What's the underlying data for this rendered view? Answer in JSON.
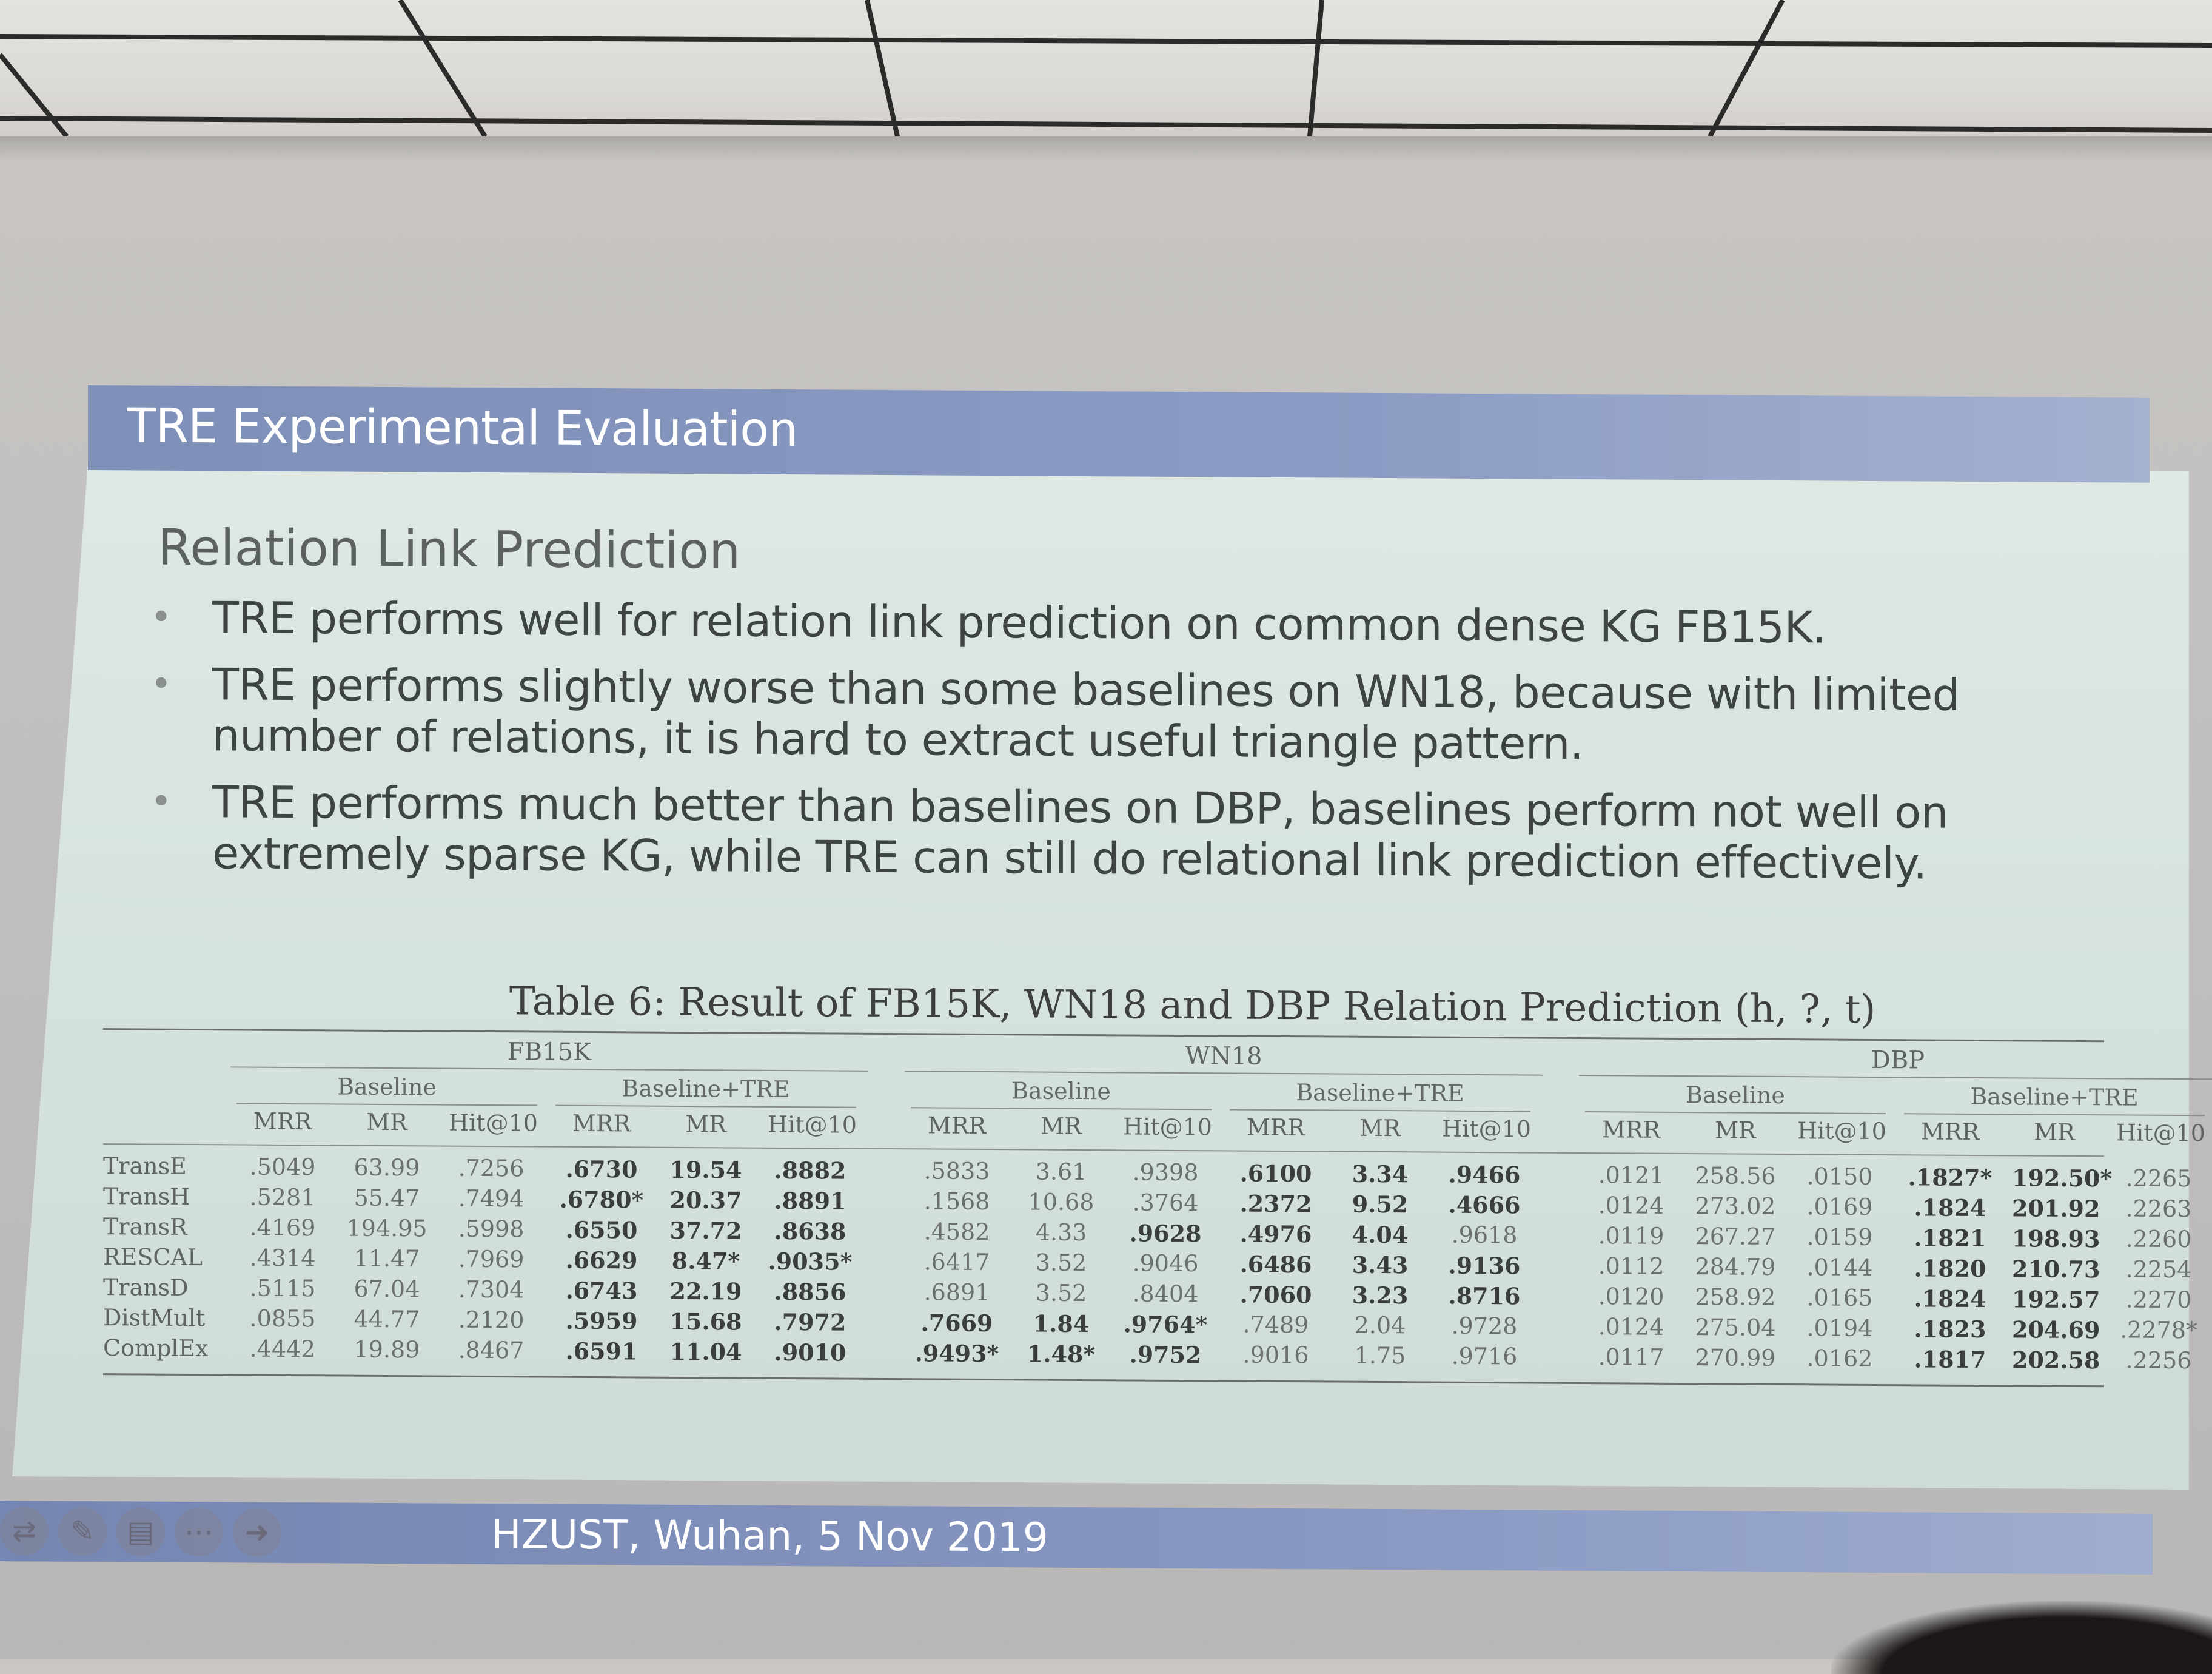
{
  "slide": {
    "title": "TRE Experimental Evaluation",
    "heading": "Relation Link Prediction",
    "bullets": [
      "TRE performs well for relation link prediction on common dense KG FB15K.",
      "TRE performs slightly worse than some baselines on WN18, because with limited number of relations, it is hard to extract useful triangle pattern.",
      "TRE performs much better than baselines on DBP, baselines perform not well on extremely sparse KG, while TRE can still do relational link prediction effectively."
    ],
    "footer": "HZUST, Wuhan, 5 Nov 2019"
  },
  "nav_icons": [
    "arrows-icon",
    "pen-icon",
    "menu-icon",
    "more-icon",
    "next-icon"
  ],
  "table": {
    "caption": "Table 6: Result of FB15K, WN18 and DBP Relation Prediction (h, ?, t)",
    "datasets": [
      "FB15K",
      "WN18",
      "DBP"
    ],
    "groups": [
      "Baseline",
      "Baseline+TRE"
    ],
    "metrics": [
      "MRR",
      "MR",
      "Hit@10"
    ],
    "rows": [
      {
        "model": "TransE",
        "cells": [
          ".5049",
          "63.99",
          ".7256",
          ".6730",
          "19.54",
          ".8882",
          ".5833",
          "3.61",
          ".9398",
          ".6100",
          "3.34",
          ".9466",
          ".0121",
          "258.56",
          ".0150",
          ".1827*",
          "192.50*",
          ".2265"
        ]
      },
      {
        "model": "TransH",
        "cells": [
          ".5281",
          "55.47",
          ".7494",
          ".6780*",
          "20.37",
          ".8891",
          ".1568",
          "10.68",
          ".3764",
          ".2372",
          "9.52",
          ".4666",
          ".0124",
          "273.02",
          ".0169",
          ".1824",
          "201.92",
          ".2263"
        ]
      },
      {
        "model": "TransR",
        "cells": [
          ".4169",
          "194.95",
          ".5998",
          ".6550",
          "37.72",
          ".8638",
          ".4582",
          "4.33",
          ".9628",
          ".4976",
          "4.04",
          ".9618",
          ".0119",
          "267.27",
          ".0159",
          ".1821",
          "198.93",
          ".2260"
        ]
      },
      {
        "model": "RESCAL",
        "cells": [
          ".4314",
          "11.47",
          ".7969",
          ".6629",
          "8.47*",
          ".9035*",
          ".6417",
          "3.52",
          ".9046",
          ".6486",
          "3.43",
          ".9136",
          ".0112",
          "284.79",
          ".0144",
          ".1820",
          "210.73",
          ".2254"
        ]
      },
      {
        "model": "TransD",
        "cells": [
          ".5115",
          "67.04",
          ".7304",
          ".6743",
          "22.19",
          ".8856",
          ".6891",
          "3.52",
          ".8404",
          ".7060",
          "3.23",
          ".8716",
          ".0120",
          "258.92",
          ".0165",
          ".1824",
          "192.57",
          ".2270"
        ]
      },
      {
        "model": "DistMult",
        "cells": [
          ".0855",
          "44.77",
          ".2120",
          ".5959",
          "15.68",
          ".7972",
          ".7669",
          "1.84",
          ".9764*",
          ".7489",
          "2.04",
          ".9728",
          ".0124",
          "275.04",
          ".0194",
          ".1823",
          "204.69",
          ".2278*"
        ]
      },
      {
        "model": "ComplEx",
        "cells": [
          ".4442",
          "19.89",
          ".8467",
          ".6591",
          "11.04",
          ".9010",
          ".9493*",
          "1.48*",
          ".9752",
          ".9016",
          "1.75",
          ".9716",
          ".0117",
          "270.99",
          ".0162",
          ".1817",
          "202.58",
          ".2256"
        ]
      }
    ],
    "bold": [
      [
        false,
        false,
        false,
        true,
        true,
        true,
        false,
        false,
        false,
        true,
        true,
        true,
        false,
        false,
        false,
        true,
        true,
        false
      ],
      [
        false,
        false,
        false,
        true,
        true,
        true,
        false,
        false,
        false,
        true,
        true,
        true,
        false,
        false,
        false,
        true,
        true,
        false
      ],
      [
        false,
        false,
        false,
        true,
        true,
        true,
        false,
        false,
        true,
        true,
        true,
        false,
        false,
        false,
        false,
        true,
        true,
        false
      ],
      [
        false,
        false,
        false,
        true,
        true,
        true,
        false,
        false,
        false,
        true,
        true,
        true,
        false,
        false,
        false,
        true,
        true,
        false
      ],
      [
        false,
        false,
        false,
        true,
        true,
        true,
        false,
        false,
        false,
        true,
        true,
        true,
        false,
        false,
        false,
        true,
        true,
        false
      ],
      [
        false,
        false,
        false,
        true,
        true,
        true,
        true,
        true,
        true,
        false,
        false,
        false,
        false,
        false,
        false,
        true,
        true,
        false
      ],
      [
        false,
        false,
        false,
        true,
        true,
        true,
        true,
        true,
        true,
        false,
        false,
        false,
        false,
        false,
        false,
        true,
        true,
        false
      ]
    ]
  },
  "colors": {
    "title_bar": "#8b9bc3",
    "slide_background": "#d6e2dc",
    "body_text": "#3d4442"
  }
}
